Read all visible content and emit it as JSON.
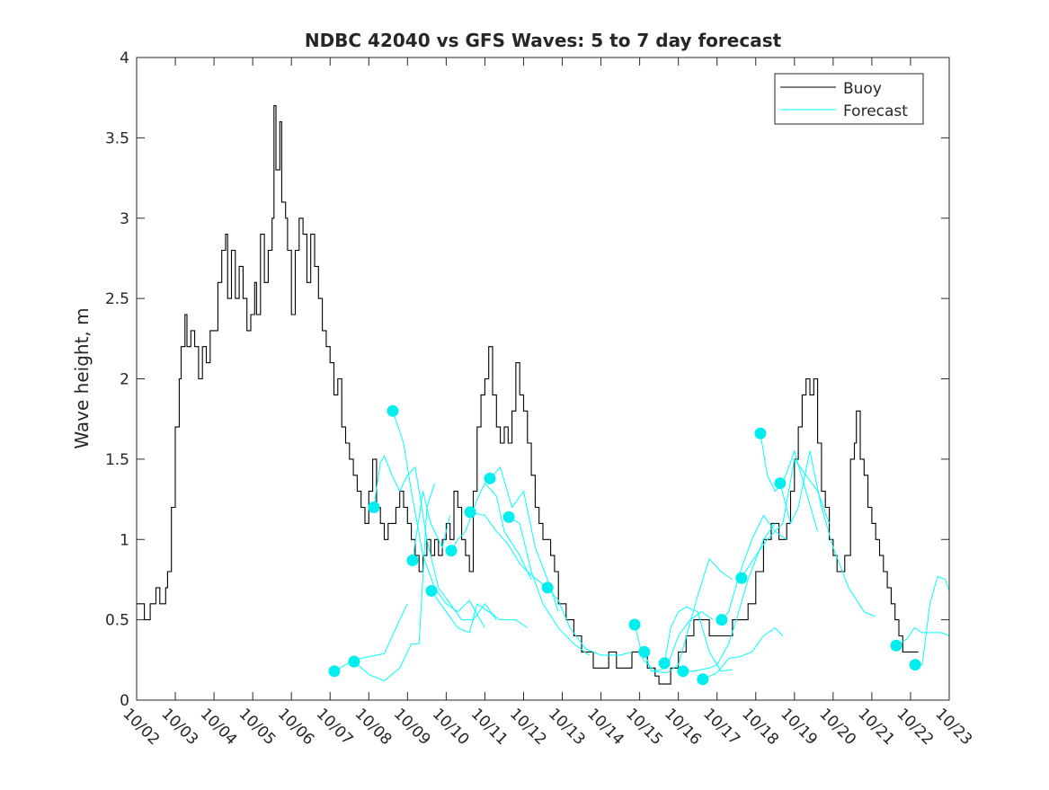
{
  "chart_data": {
    "type": "line",
    "title": "NDBC 42040 vs GFS Waves: 5 to 7 day forecast",
    "xlabel": "",
    "ylabel": "Wave height, m",
    "xlim": [
      0,
      21
    ],
    "ylim": [
      0,
      4
    ],
    "x_ticks": [
      "10/02",
      "10/03",
      "10/04",
      "10/05",
      "10/06",
      "10/07",
      "10/08",
      "10/09",
      "10/10",
      "10/11",
      "10/12",
      "10/13",
      "10/14",
      "10/15",
      "10/16",
      "10/17",
      "10/18",
      "10/19",
      "10/20",
      "10/21",
      "10/22",
      "10/23"
    ],
    "y_ticks": [
      "0",
      "0.5",
      "1",
      "1.5",
      "2",
      "2.5",
      "3",
      "3.5",
      "4"
    ],
    "legend": {
      "placement": "top-right",
      "entries": [
        "Buoy",
        "Forecast"
      ]
    },
    "colors": {
      "buoy": "#000000",
      "forecast": "#00ffff",
      "dot": "#00eeee"
    },
    "buoy": [
      [
        0,
        0.6
      ],
      [
        0.2,
        0.5
      ],
      [
        0.35,
        0.6
      ],
      [
        0.5,
        0.7
      ],
      [
        0.6,
        0.6
      ],
      [
        0.75,
        0.7
      ],
      [
        0.8,
        0.8
      ],
      [
        0.9,
        1.2
      ],
      [
        1.0,
        1.7
      ],
      [
        1.1,
        2.0
      ],
      [
        1.15,
        2.2
      ],
      [
        1.25,
        2.4
      ],
      [
        1.3,
        2.2
      ],
      [
        1.4,
        2.3
      ],
      [
        1.5,
        2.2
      ],
      [
        1.6,
        2.0
      ],
      [
        1.7,
        2.2
      ],
      [
        1.8,
        2.1
      ],
      [
        1.9,
        2.3
      ],
      [
        2.0,
        2.3
      ],
      [
        2.1,
        2.6
      ],
      [
        2.2,
        2.8
      ],
      [
        2.3,
        2.9
      ],
      [
        2.35,
        2.5
      ],
      [
        2.45,
        2.8
      ],
      [
        2.55,
        2.5
      ],
      [
        2.65,
        2.7
      ],
      [
        2.75,
        2.5
      ],
      [
        2.85,
        2.3
      ],
      [
        2.95,
        2.4
      ],
      [
        3.05,
        2.6
      ],
      [
        3.1,
        2.4
      ],
      [
        3.2,
        2.9
      ],
      [
        3.3,
        2.6
      ],
      [
        3.4,
        2.8
      ],
      [
        3.5,
        3.0
      ],
      [
        3.55,
        3.7
      ],
      [
        3.6,
        3.3
      ],
      [
        3.7,
        3.6
      ],
      [
        3.75,
        3.1
      ],
      [
        3.85,
        3.0
      ],
      [
        3.9,
        2.8
      ],
      [
        4.0,
        2.4
      ],
      [
        4.1,
        2.8
      ],
      [
        4.2,
        3.0
      ],
      [
        4.3,
        2.9
      ],
      [
        4.4,
        2.6
      ],
      [
        4.5,
        2.9
      ],
      [
        4.6,
        2.7
      ],
      [
        4.7,
        2.5
      ],
      [
        4.8,
        2.3
      ],
      [
        4.9,
        2.2
      ],
      [
        5.0,
        2.1
      ],
      [
        5.1,
        1.9
      ],
      [
        5.2,
        2.0
      ],
      [
        5.3,
        1.7
      ],
      [
        5.4,
        1.6
      ],
      [
        5.5,
        1.5
      ],
      [
        5.6,
        1.4
      ],
      [
        5.7,
        1.3
      ],
      [
        5.8,
        1.2
      ],
      [
        5.9,
        1.1
      ],
      [
        6.0,
        1.3
      ],
      [
        6.1,
        1.5
      ],
      [
        6.2,
        1.2
      ],
      [
        6.3,
        1.1
      ],
      [
        6.4,
        1.0
      ],
      [
        6.5,
        1.1
      ],
      [
        6.6,
        1.1
      ],
      [
        6.7,
        1.2
      ],
      [
        6.8,
        1.3
      ],
      [
        6.9,
        1.2
      ],
      [
        7.0,
        1.1
      ],
      [
        7.1,
        1.0
      ],
      [
        7.2,
        0.9
      ],
      [
        7.3,
        0.8
      ],
      [
        7.4,
        0.9
      ],
      [
        7.5,
        1.0
      ],
      [
        7.6,
        0.9
      ],
      [
        7.7,
        1.0
      ],
      [
        7.8,
        0.9
      ],
      [
        7.9,
        1.0
      ],
      [
        8.0,
        1.1
      ],
      [
        8.1,
        1.0
      ],
      [
        8.2,
        1.3
      ],
      [
        8.3,
        1.2
      ],
      [
        8.4,
        1.0
      ],
      [
        8.5,
        0.9
      ],
      [
        8.6,
        0.8
      ],
      [
        8.7,
        1.3
      ],
      [
        8.8,
        1.7
      ],
      [
        8.9,
        1.9
      ],
      [
        9.0,
        2.0
      ],
      [
        9.1,
        2.2
      ],
      [
        9.2,
        1.9
      ],
      [
        9.3,
        1.7
      ],
      [
        9.4,
        1.6
      ],
      [
        9.5,
        1.7
      ],
      [
        9.6,
        1.6
      ],
      [
        9.7,
        1.8
      ],
      [
        9.8,
        2.1
      ],
      [
        9.9,
        1.9
      ],
      [
        10.0,
        1.8
      ],
      [
        10.1,
        1.6
      ],
      [
        10.2,
        1.4
      ],
      [
        10.3,
        1.2
      ],
      [
        10.4,
        1.1
      ],
      [
        10.5,
        1.0
      ],
      [
        10.6,
        1.0
      ],
      [
        10.7,
        0.9
      ],
      [
        10.8,
        0.8
      ],
      [
        10.9,
        0.6
      ],
      [
        11.0,
        0.6
      ],
      [
        11.1,
        0.5
      ],
      [
        11.2,
        0.5
      ],
      [
        11.3,
        0.4
      ],
      [
        11.5,
        0.3
      ],
      [
        11.7,
        0.3
      ],
      [
        11.8,
        0.2
      ],
      [
        12.0,
        0.2
      ],
      [
        12.2,
        0.3
      ],
      [
        12.4,
        0.2
      ],
      [
        12.6,
        0.2
      ],
      [
        12.8,
        0.3
      ],
      [
        13.0,
        0.3
      ],
      [
        13.2,
        0.2
      ],
      [
        13.4,
        0.15
      ],
      [
        13.5,
        0.1
      ],
      [
        13.7,
        0.1
      ],
      [
        13.8,
        0.2
      ],
      [
        14.0,
        0.3
      ],
      [
        14.2,
        0.4
      ],
      [
        14.4,
        0.5
      ],
      [
        14.6,
        0.5
      ],
      [
        14.8,
        0.4
      ],
      [
        15.0,
        0.4
      ],
      [
        15.2,
        0.4
      ],
      [
        15.4,
        0.5
      ],
      [
        15.6,
        0.5
      ],
      [
        15.8,
        0.6
      ],
      [
        16.0,
        0.8
      ],
      [
        16.2,
        1.0
      ],
      [
        16.4,
        1.1
      ],
      [
        16.6,
        1.0
      ],
      [
        16.8,
        1.1
      ],
      [
        16.9,
        1.3
      ],
      [
        17.0,
        1.5
      ],
      [
        17.1,
        1.7
      ],
      [
        17.2,
        1.9
      ],
      [
        17.3,
        2.0
      ],
      [
        17.4,
        1.9
      ],
      [
        17.5,
        2.0
      ],
      [
        17.6,
        1.6
      ],
      [
        17.7,
        1.3
      ],
      [
        17.8,
        1.2
      ],
      [
        17.9,
        1.0
      ],
      [
        18.0,
        0.9
      ],
      [
        18.1,
        0.8
      ],
      [
        18.2,
        0.8
      ],
      [
        18.3,
        0.9
      ],
      [
        18.45,
        1.5
      ],
      [
        18.55,
        1.6
      ],
      [
        18.6,
        1.8
      ],
      [
        18.7,
        1.5
      ],
      [
        18.8,
        1.4
      ],
      [
        18.9,
        1.2
      ],
      [
        19.0,
        1.1
      ],
      [
        19.1,
        1.0
      ],
      [
        19.2,
        0.9
      ],
      [
        19.3,
        0.8
      ],
      [
        19.4,
        0.7
      ],
      [
        19.5,
        0.6
      ],
      [
        19.6,
        0.5
      ],
      [
        19.7,
        0.4
      ],
      [
        19.8,
        0.3
      ],
      [
        20.0,
        0.3
      ],
      [
        20.2,
        0.3
      ]
    ],
    "forecast": [
      [
        [
          5.11,
          0.18
        ],
        [
          5.62,
          0.25
        ],
        [
          6.0,
          0.27
        ],
        [
          6.4,
          0.29
        ],
        [
          6.8,
          0.5
        ],
        [
          7.0,
          0.6
        ]
      ],
      [
        [
          5.62,
          0.24
        ],
        [
          6.0,
          0.16
        ],
        [
          6.4,
          0.12
        ],
        [
          6.8,
          0.2
        ],
        [
          7.1,
          0.35
        ],
        [
          7.3,
          0.35
        ],
        [
          7.5,
          1.2
        ],
        [
          7.7,
          1.35
        ]
      ],
      [
        [
          6.13,
          1.2
        ],
        [
          6.3,
          1.48
        ],
        [
          6.4,
          1.52
        ],
        [
          6.6,
          1.4
        ],
        [
          6.8,
          1.3
        ],
        [
          7.0,
          1.4
        ],
        [
          7.2,
          1.45
        ],
        [
          7.5,
          1.0
        ],
        [
          7.8,
          0.7
        ],
        [
          8.1,
          0.6
        ],
        [
          8.4,
          0.5
        ],
        [
          8.7,
          0.5
        ],
        [
          9.0,
          0.6
        ],
        [
          9.3,
          0.5
        ]
      ],
      [
        [
          6.62,
          1.8
        ],
        [
          6.9,
          1.6
        ],
        [
          7.1,
          1.3
        ],
        [
          7.4,
          0.9
        ],
        [
          7.7,
          0.7
        ],
        [
          8.0,
          0.6
        ],
        [
          8.3,
          0.55
        ],
        [
          8.6,
          0.62
        ],
        [
          9.0,
          0.45
        ]
      ],
      [
        [
          7.13,
          0.87
        ],
        [
          7.4,
          1.3
        ],
        [
          7.6,
          1.1
        ],
        [
          7.9,
          0.95
        ],
        [
          8.1,
          1.15
        ]
      ],
      [
        [
          7.62,
          0.68
        ],
        [
          8.0,
          0.55
        ],
        [
          8.3,
          0.45
        ],
        [
          8.6,
          0.42
        ],
        [
          8.8,
          0.6
        ],
        [
          9.1,
          0.55
        ],
        [
          9.4,
          0.5
        ],
        [
          9.8,
          0.5
        ],
        [
          10.1,
          0.45
        ]
      ],
      [
        [
          8.13,
          0.93
        ],
        [
          8.3,
          1.0
        ],
        [
          8.5,
          1.05
        ],
        [
          8.8,
          1.25
        ],
        [
          9.0,
          1.35
        ],
        [
          9.3,
          1.27
        ],
        [
          9.5,
          1.05
        ],
        [
          9.9,
          0.9
        ],
        [
          10.2,
          0.75
        ]
      ],
      [
        [
          8.62,
          1.17
        ],
        [
          9.0,
          1.15
        ],
        [
          9.3,
          1.05
        ],
        [
          9.6,
          0.97
        ],
        [
          9.9,
          0.85
        ],
        [
          10.1,
          0.8
        ],
        [
          10.5,
          0.72
        ]
      ],
      [
        [
          9.13,
          1.38
        ],
        [
          9.4,
          1.45
        ],
        [
          9.7,
          1.2
        ],
        [
          10.0,
          1.3
        ],
        [
          10.3,
          0.95
        ],
        [
          10.7,
          0.7
        ],
        [
          10.9,
          0.55
        ]
      ],
      [
        [
          9.62,
          1.14
        ],
        [
          9.9,
          1.1
        ],
        [
          10.2,
          0.8
        ],
        [
          10.5,
          0.6
        ],
        [
          10.9,
          0.45
        ],
        [
          11.3,
          0.35
        ],
        [
          11.7,
          0.28
        ]
      ],
      [
        [
          10.62,
          0.7
        ],
        [
          10.9,
          0.62
        ],
        [
          11.2,
          0.45
        ],
        [
          11.6,
          0.32
        ],
        [
          12.0,
          0.28
        ],
        [
          12.5,
          0.28
        ],
        [
          12.8,
          0.3
        ]
      ],
      [
        [
          12.87,
          0.47
        ],
        [
          13.1,
          0.25
        ],
        [
          13.4,
          0.18
        ],
        [
          13.7,
          0.2
        ],
        [
          14.0,
          0.4
        ],
        [
          14.3,
          0.5
        ],
        [
          14.6,
          0.55
        ],
        [
          14.9,
          0.5
        ]
      ],
      [
        [
          13.12,
          0.3
        ],
        [
          13.3,
          0.18
        ],
        [
          13.7,
          0.17
        ],
        [
          14.0,
          0.22
        ],
        [
          14.5,
          0.65
        ],
        [
          14.8,
          0.88
        ],
        [
          15.1,
          0.8
        ],
        [
          15.4,
          0.75
        ]
      ],
      [
        [
          13.64,
          0.23
        ],
        [
          13.8,
          0.45
        ],
        [
          14.0,
          0.55
        ],
        [
          14.2,
          0.58
        ],
        [
          14.5,
          0.55
        ],
        [
          14.8,
          0.3
        ],
        [
          15.1,
          0.18
        ],
        [
          15.4,
          0.19
        ]
      ],
      [
        [
          14.12,
          0.18
        ],
        [
          14.4,
          0.18
        ],
        [
          14.8,
          0.2
        ],
        [
          15.0,
          0.22
        ],
        [
          15.3,
          0.35
        ],
        [
          15.5,
          0.5
        ],
        [
          15.8,
          0.75
        ],
        [
          16.2,
          1.0
        ],
        [
          16.5,
          1.1
        ]
      ],
      [
        [
          14.63,
          0.13
        ],
        [
          15.0,
          0.17
        ],
        [
          15.3,
          0.26
        ],
        [
          15.6,
          0.27
        ],
        [
          15.9,
          0.3
        ],
        [
          16.2,
          0.4
        ],
        [
          16.5,
          0.45
        ],
        [
          16.7,
          0.4
        ]
      ],
      [
        [
          15.12,
          0.5
        ],
        [
          15.3,
          0.55
        ],
        [
          15.6,
          0.8
        ],
        [
          15.9,
          1.0
        ],
        [
          16.2,
          1.15
        ],
        [
          16.5,
          1.05
        ],
        [
          16.8,
          1.0
        ]
      ],
      [
        [
          15.63,
          0.76
        ],
        [
          16.0,
          0.9
        ],
        [
          16.3,
          1.0
        ],
        [
          16.7,
          1.1
        ],
        [
          17.0,
          1.5
        ],
        [
          17.3,
          1.4
        ],
        [
          17.6,
          1.3
        ],
        [
          17.9,
          1.1
        ]
      ],
      [
        [
          16.12,
          1.66
        ],
        [
          16.3,
          1.4
        ],
        [
          16.5,
          1.3
        ],
        [
          16.7,
          1.35
        ],
        [
          17.0,
          1.55
        ],
        [
          17.3,
          1.3
        ],
        [
          17.6,
          1.05
        ]
      ],
      [
        [
          16.63,
          1.35
        ],
        [
          16.9,
          1.1
        ],
        [
          17.1,
          1.2
        ],
        [
          17.4,
          1.55
        ],
        [
          17.7,
          1.2
        ],
        [
          18.0,
          0.95
        ],
        [
          18.4,
          0.7
        ],
        [
          18.8,
          0.55
        ],
        [
          19.1,
          0.52
        ]
      ],
      [
        [
          19.63,
          0.34
        ],
        [
          19.9,
          0.38
        ],
        [
          20.1,
          0.45
        ],
        [
          20.3,
          0.42
        ],
        [
          20.6,
          0.42
        ],
        [
          20.8,
          0.42
        ],
        [
          21.0,
          0.4
        ]
      ],
      [
        [
          20.12,
          0.22
        ],
        [
          20.3,
          0.22
        ],
        [
          20.5,
          0.6
        ],
        [
          20.7,
          0.77
        ],
        [
          20.9,
          0.75
        ],
        [
          21.0,
          0.68
        ]
      ]
    ]
  }
}
